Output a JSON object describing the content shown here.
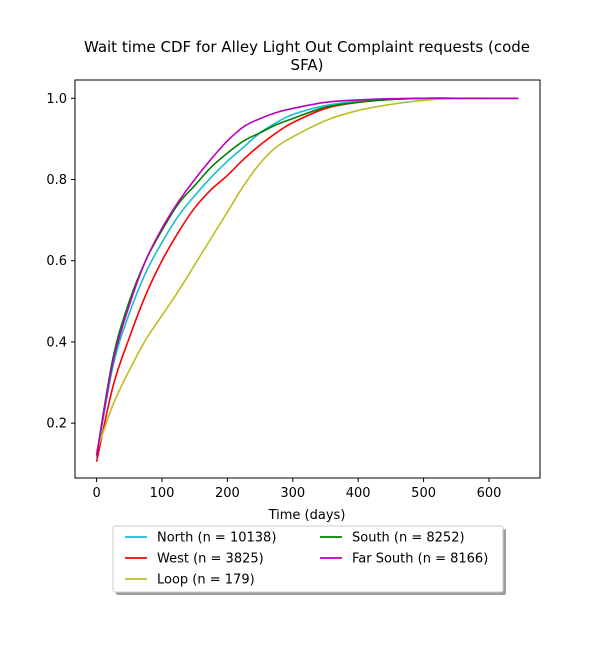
{
  "chart_data": {
    "type": "line",
    "title_lines": [
      "Wait time CDF for Alley Light Out Complaint  requests (code",
      "SFA)"
    ],
    "xlabel": "Time (days)",
    "ylabel": "",
    "xlim": [
      -33,
      678
    ],
    "ylim": [
      0.065,
      1.045
    ],
    "xticks": [
      0,
      100,
      200,
      300,
      400,
      500,
      600
    ],
    "yticks": [
      0.2,
      0.4,
      0.6,
      0.8,
      1.0
    ],
    "xtick_labels": [
      "0",
      "100",
      "200",
      "300",
      "400",
      "500",
      "600"
    ],
    "ytick_labels": [
      "0.2",
      "0.4",
      "0.6",
      "0.8",
      "1.0"
    ],
    "grid": false,
    "legend_placement": "below",
    "x": [
      0,
      25,
      50,
      75,
      100,
      125,
      150,
      175,
      200,
      225,
      250,
      275,
      300,
      350,
      400,
      450,
      500,
      550,
      600,
      645
    ],
    "series": [
      {
        "name": "North (n = 10138)",
        "color": "#17becf",
        "values": [
          0.115,
          0.34,
          0.47,
          0.57,
          0.645,
          0.71,
          0.76,
          0.805,
          0.845,
          0.88,
          0.915,
          0.94,
          0.96,
          0.982,
          0.993,
          0.998,
          1.0,
          1.0,
          1.0,
          1.0
        ]
      },
      {
        "name": "West (n = 3825)",
        "color": "#ff0000",
        "values": [
          0.105,
          0.29,
          0.41,
          0.515,
          0.6,
          0.67,
          0.73,
          0.775,
          0.81,
          0.85,
          0.885,
          0.915,
          0.94,
          0.975,
          0.99,
          0.997,
          1.0,
          1.0,
          1.0,
          1.0
        ]
      },
      {
        "name": "Loop (n = 179)",
        "color": "#bcbd22",
        "values": [
          0.13,
          0.245,
          0.33,
          0.405,
          0.465,
          0.525,
          0.59,
          0.655,
          0.72,
          0.785,
          0.84,
          0.88,
          0.905,
          0.945,
          0.97,
          0.985,
          0.995,
          1.0,
          1.0,
          1.0
        ]
      },
      {
        "name": "South (n = 8252)",
        "color": "#008000",
        "values": [
          0.12,
          0.36,
          0.5,
          0.6,
          0.675,
          0.74,
          0.785,
          0.83,
          0.865,
          0.895,
          0.915,
          0.935,
          0.95,
          0.978,
          0.99,
          0.997,
          1.0,
          1.0,
          1.0,
          1.0
        ]
      },
      {
        "name": "Far South (n = 8166)",
        "color": "#bf00bf",
        "values": [
          0.12,
          0.35,
          0.49,
          0.6,
          0.68,
          0.745,
          0.8,
          0.85,
          0.895,
          0.93,
          0.95,
          0.965,
          0.975,
          0.99,
          0.996,
          0.999,
          1.0,
          1.0,
          1.0,
          1.0
        ]
      }
    ],
    "legend_columns": [
      [
        0,
        1,
        2
      ],
      [
        3,
        4
      ]
    ]
  }
}
